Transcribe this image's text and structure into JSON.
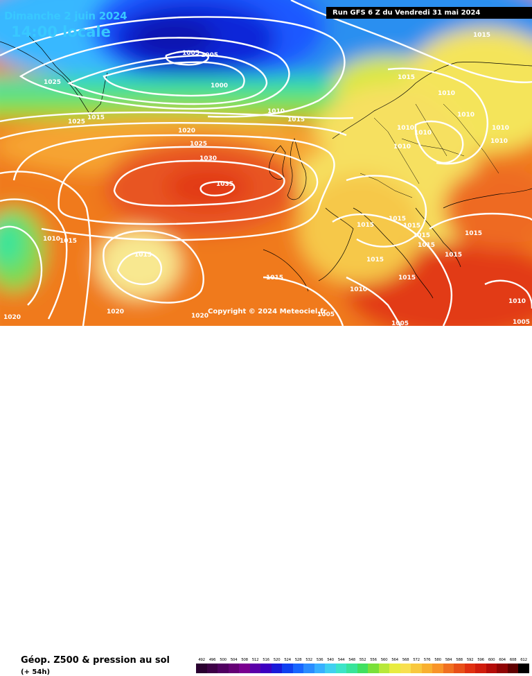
{
  "header": {
    "date_label": "Dimanche 2 juin 2024",
    "time_label": "14:00 locale",
    "run_label": "Run GFS 6 Z du Vendredi 31 mai 2024"
  },
  "copyright": "Copyright © 2024 Meteociel.fr",
  "footer": {
    "title": "Géop. Z500 & pression au sol",
    "subtitle": "(+ 54h)"
  },
  "map": {
    "isobar_labels": [
      {
        "text": "1015"
      },
      {
        "text": "1005"
      },
      {
        "text": "1005"
      },
      {
        "text": "1025"
      },
      {
        "text": "1000"
      },
      {
        "text": "1010"
      },
      {
        "text": "1015"
      },
      {
        "text": "1015"
      },
      {
        "text": "1025"
      },
      {
        "text": "1020"
      },
      {
        "text": "1025"
      },
      {
        "text": "1030"
      },
      {
        "text": "1035"
      },
      {
        "text": "1010"
      },
      {
        "text": "1015"
      },
      {
        "text": "1015"
      },
      {
        "text": "1015"
      },
      {
        "text": "1015"
      },
      {
        "text": "1020"
      },
      {
        "text": "1020"
      },
      {
        "text": "1020"
      },
      {
        "text": "1005"
      },
      {
        "text": "1010"
      },
      {
        "text": "1015"
      },
      {
        "text": "1015"
      },
      {
        "text": "1010"
      },
      {
        "text": "1005"
      },
      {
        "text": "1010"
      },
      {
        "text": "1010"
      },
      {
        "text": "1010"
      },
      {
        "text": "1010"
      },
      {
        "text": "1010"
      },
      {
        "text": "1010"
      },
      {
        "text": "1010"
      },
      {
        "text": "1015"
      },
      {
        "text": "1015"
      },
      {
        "text": "1015"
      },
      {
        "text": "1015"
      },
      {
        "text": "1015"
      },
      {
        "text": "1015"
      },
      {
        "text": "1015"
      },
      {
        "text": "1005"
      }
    ]
  },
  "legend": {
    "ticks": [
      "492",
      "496",
      "500",
      "504",
      "508",
      "512",
      "516",
      "520",
      "524",
      "528",
      "532",
      "536",
      "540",
      "544",
      "548",
      "552",
      "556",
      "560",
      "564",
      "568",
      "572",
      "576",
      "580",
      "584",
      "588",
      "592",
      "596",
      "600",
      "604",
      "608",
      "612"
    ],
    "colors": [
      "#2a0030",
      "#3d0046",
      "#500060",
      "#650075",
      "#7a0090",
      "#5a00a8",
      "#3c00c0",
      "#1a1ad8",
      "#1040f0",
      "#1866ff",
      "#2a8cff",
      "#38b0ff",
      "#40d0f0",
      "#3ce4c8",
      "#38e49a",
      "#40e060",
      "#7ae03a",
      "#b8e83a",
      "#e8ec40",
      "#f8e050",
      "#f8c83e",
      "#f8b030",
      "#f89428",
      "#f07020",
      "#e85018",
      "#e03010",
      "#d01c0c",
      "#b40c08",
      "#900404",
      "#600000",
      "#000000"
    ]
  }
}
